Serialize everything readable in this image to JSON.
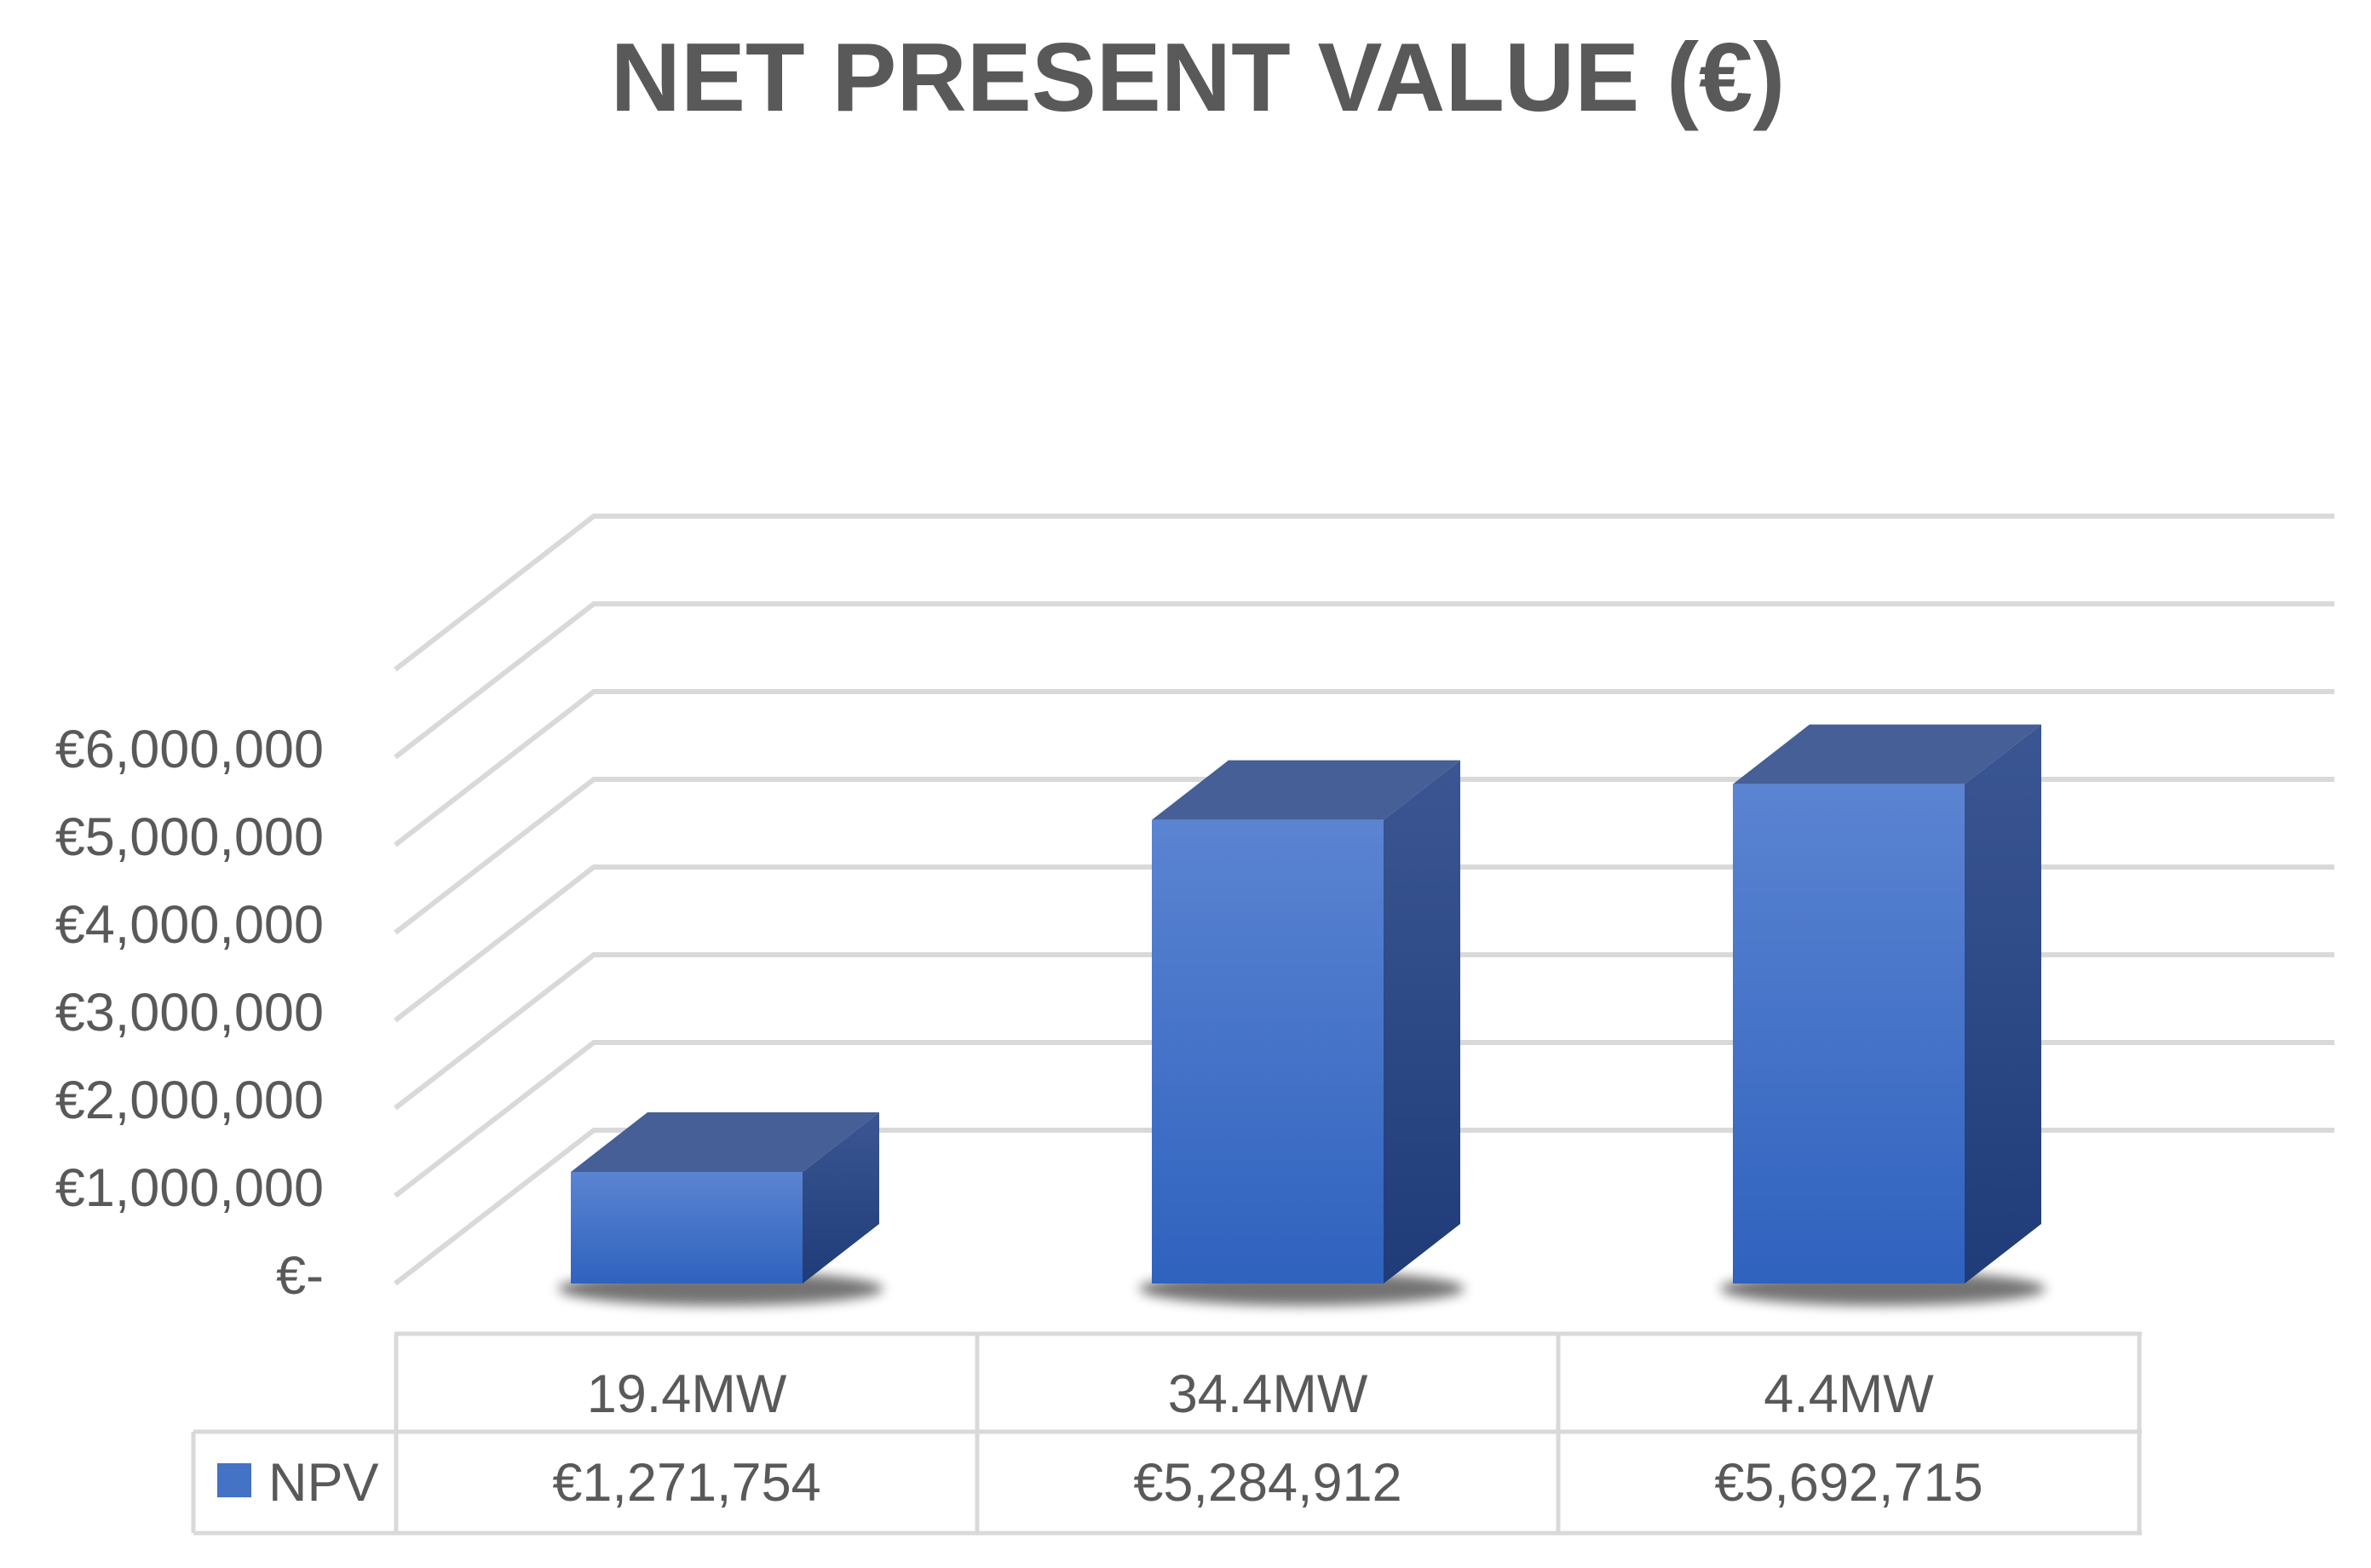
{
  "chart_data": {
    "type": "bar",
    "title": "NET PRESENT VALUE (€)",
    "categories": [
      "19.4MW",
      "34.4MW",
      "4.4MW"
    ],
    "series": [
      {
        "name": "NPV",
        "values": [
          1271754,
          5284912,
          5692715
        ],
        "value_labels": [
          "€1,271,754",
          "€5,284,912",
          "€5,692,715"
        ],
        "color": "#4472c4"
      }
    ],
    "yticks": [
      0,
      1000000,
      2000000,
      3000000,
      4000000,
      5000000,
      6000000
    ],
    "ytick_labels": [
      "€-",
      "€1,000,000",
      "€2,000,000",
      "€3,000,000",
      "€4,000,000",
      "€5,000,000",
      "€6,000,000"
    ],
    "ylim": [
      0,
      7000000
    ],
    "grid": true,
    "legend": "data-table",
    "style": "3d-column"
  }
}
